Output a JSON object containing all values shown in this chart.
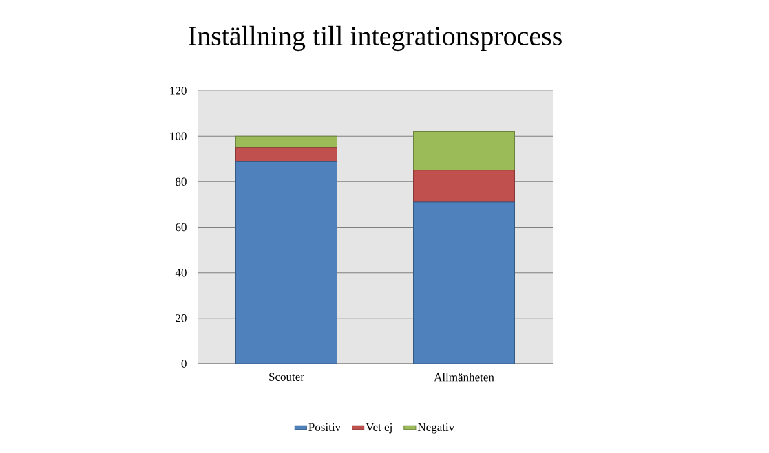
{
  "chart_data": {
    "type": "bar",
    "title": "Inställning till integrationsprocess",
    "categories": [
      "Scouter",
      "Allmänheten"
    ],
    "series": [
      {
        "name": "Positiv",
        "color": "#4f81bd",
        "values": [
          89,
          71
        ]
      },
      {
        "name": "Vet ej",
        "color": "#c0504d",
        "values": [
          6,
          14
        ]
      },
      {
        "name": "Negativ",
        "color": "#9bbb59",
        "values": [
          5,
          17
        ]
      }
    ],
    "stacked": true,
    "ylim": [
      0,
      120
    ],
    "yticks": [
      0,
      20,
      40,
      60,
      80,
      100,
      120
    ],
    "grid": "y",
    "legend": "bottom"
  }
}
